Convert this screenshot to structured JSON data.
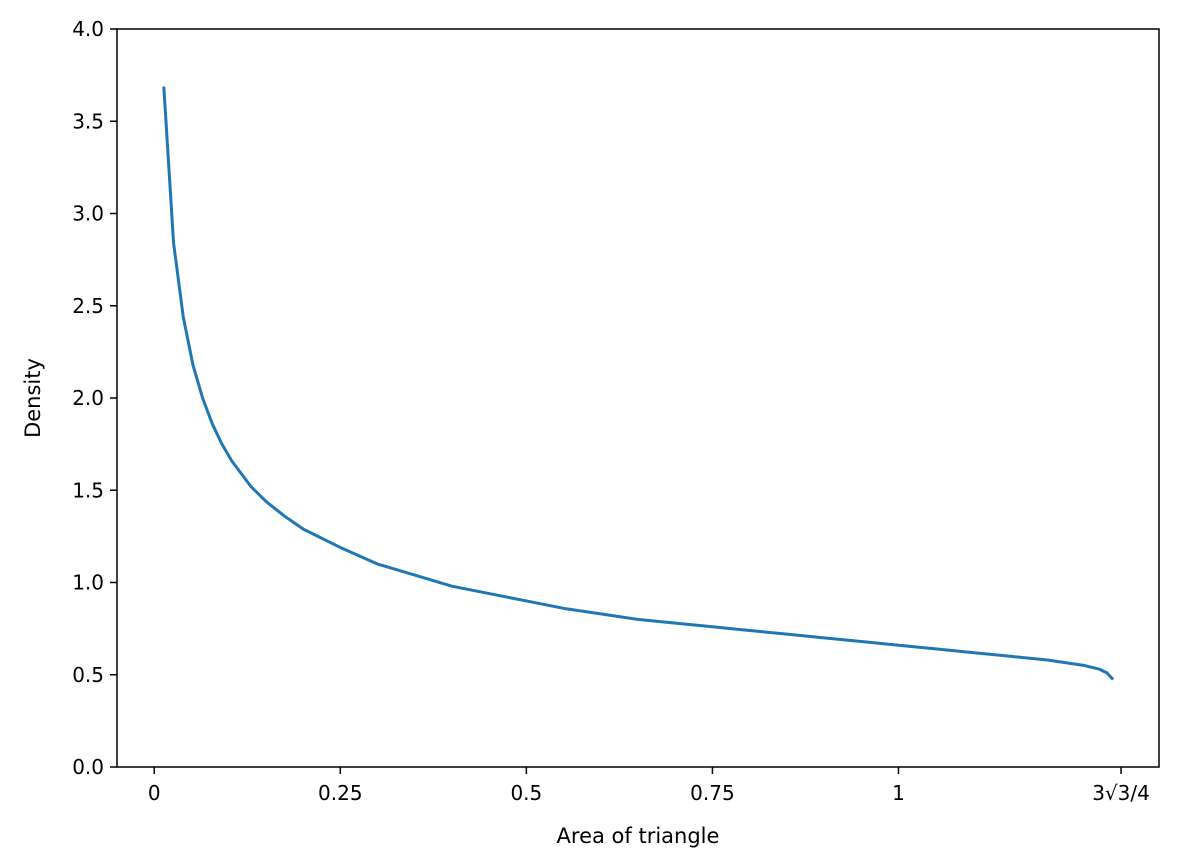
{
  "chart_data": {
    "type": "line",
    "title": "",
    "xlabel": "Area of triangle",
    "ylabel": "Density",
    "xlim": [
      -0.05,
      1.35
    ],
    "ylim": [
      0,
      4.0
    ],
    "grid": false,
    "x_ticks": [
      {
        "value": 0,
        "label": "0"
      },
      {
        "value": 0.25,
        "label": "0.25"
      },
      {
        "value": 0.5,
        "label": "0.5"
      },
      {
        "value": 0.75,
        "label": "0.75"
      },
      {
        "value": 1,
        "label": "1"
      },
      {
        "value": 1.299,
        "label": "3√3/4"
      }
    ],
    "y_ticks": [
      {
        "value": 0.0,
        "label": "0.0"
      },
      {
        "value": 0.5,
        "label": "0.5"
      },
      {
        "value": 1.0,
        "label": "1.0"
      },
      {
        "value": 1.5,
        "label": "1.5"
      },
      {
        "value": 2.0,
        "label": "2.0"
      },
      {
        "value": 2.5,
        "label": "2.5"
      },
      {
        "value": 3.0,
        "label": "3.0"
      },
      {
        "value": 3.5,
        "label": "3.5"
      },
      {
        "value": 4.0,
        "label": "4.0"
      }
    ],
    "series": [
      {
        "color": "#1f77b4",
        "x": [
          0.013,
          0.026,
          0.039,
          0.052,
          0.065,
          0.078,
          0.091,
          0.104,
          0.117,
          0.13,
          0.15,
          0.175,
          0.2,
          0.25,
          0.3,
          0.35,
          0.4,
          0.45,
          0.5,
          0.55,
          0.6,
          0.65,
          0.7,
          0.75,
          0.8,
          0.85,
          0.9,
          0.95,
          1.0,
          1.05,
          1.1,
          1.15,
          1.2,
          1.25,
          1.27,
          1.28,
          1.287
        ],
        "y": [
          3.68,
          2.84,
          2.44,
          2.18,
          2.0,
          1.86,
          1.75,
          1.66,
          1.59,
          1.52,
          1.44,
          1.36,
          1.29,
          1.19,
          1.1,
          1.04,
          0.98,
          0.94,
          0.9,
          0.86,
          0.83,
          0.8,
          0.78,
          0.76,
          0.74,
          0.72,
          0.7,
          0.68,
          0.66,
          0.64,
          0.62,
          0.6,
          0.58,
          0.55,
          0.53,
          0.51,
          0.48
        ]
      }
    ]
  }
}
